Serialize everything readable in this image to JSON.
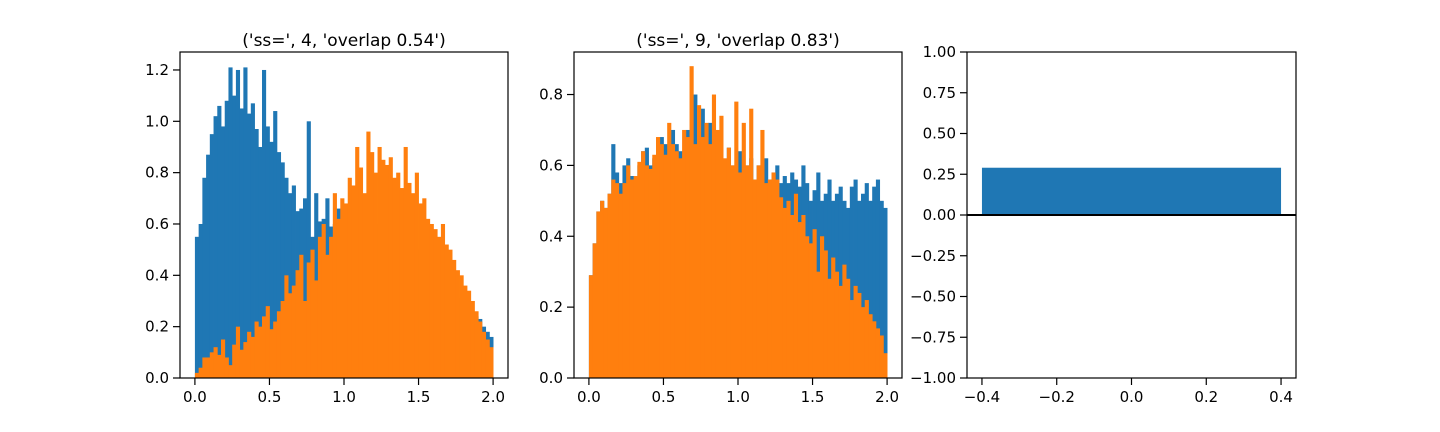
{
  "colors": {
    "blue": "#1f77b4",
    "orange": "#ff7f0e",
    "axis": "#000000"
  },
  "chart_data": [
    {
      "type": "bar",
      "subtype": "histogram",
      "title": "('ss=', 4, 'overlap 0.54')",
      "xlabel": "",
      "ylabel": "",
      "xlim": [
        -0.1,
        2.1
      ],
      "ylim": [
        0,
        1.27
      ],
      "bin_range": [
        0,
        2
      ],
      "xticks": [
        "0.0",
        "0.5",
        "1.0",
        "1.5",
        "2.0"
      ],
      "xtick_values": [
        0,
        0.5,
        1.0,
        1.5,
        2.0
      ],
      "yticks": [
        "0.0",
        "0.2",
        "0.4",
        "0.6",
        "0.8",
        "1.0",
        "1.2"
      ],
      "ytick_values": [
        0,
        0.2,
        0.4,
        0.6,
        0.8,
        1.0,
        1.2
      ],
      "series": [
        {
          "color": "#1f77b4",
          "values": [
            0.55,
            0.6,
            0.78,
            0.87,
            0.95,
            1.02,
            1.06,
            0.98,
            1.08,
            1.21,
            1.1,
            1.2,
            1.05,
            1.21,
            1.03,
            1.07,
            0.97,
            0.9,
            1.2,
            0.98,
            0.92,
            1.04,
            0.88,
            0.84,
            0.78,
            0.72,
            0.75,
            0.65,
            0.66,
            0.7,
            1.0,
            0.55,
            0.72,
            0.61,
            0.62,
            0.7,
            0.59,
            0.6,
            0.66,
            0.56,
            0.5,
            0.55,
            0.62,
            0.68,
            0.53,
            0.63,
            0.58,
            0.64,
            0.6,
            0.53,
            0.58,
            0.57,
            0.55,
            0.56,
            0.61,
            0.5,
            0.52,
            0.48,
            0.46,
            0.44,
            0.5,
            0.43,
            0.4,
            0.41,
            0.38,
            0.4,
            0.37,
            0.35,
            0.33,
            0.34,
            0.3,
            0.31,
            0.28,
            0.27,
            0.25,
            0.24,
            0.23,
            0.2,
            0.18,
            0.16
          ]
        },
        {
          "color": "#ff7f0e",
          "values": [
            0.02,
            0.04,
            0.08,
            0.08,
            0.1,
            0.12,
            0.09,
            0.15,
            0.08,
            0.05,
            0.13,
            0.2,
            0.11,
            0.14,
            0.18,
            0.16,
            0.22,
            0.2,
            0.24,
            0.28,
            0.19,
            0.22,
            0.26,
            0.3,
            0.4,
            0.33,
            0.36,
            0.42,
            0.48,
            0.3,
            0.45,
            0.5,
            0.38,
            0.55,
            0.6,
            0.48,
            0.55,
            0.72,
            0.62,
            0.7,
            0.68,
            0.78,
            0.75,
            0.9,
            0.82,
            0.72,
            0.96,
            0.88,
            0.8,
            0.9,
            0.85,
            0.83,
            0.86,
            0.78,
            0.8,
            0.74,
            0.9,
            0.76,
            0.72,
            0.8,
            0.68,
            0.7,
            0.62,
            0.6,
            0.58,
            0.55,
            0.6,
            0.52,
            0.5,
            0.46,
            0.42,
            0.4,
            0.36,
            0.34,
            0.3,
            0.26,
            0.22,
            0.18,
            0.15,
            0.12
          ]
        }
      ]
    },
    {
      "type": "bar",
      "subtype": "histogram",
      "title": "('ss=', 9, 'overlap 0.83')",
      "xlabel": "",
      "ylabel": "",
      "xlim": [
        -0.1,
        2.1
      ],
      "ylim": [
        0,
        0.92
      ],
      "bin_range": [
        0,
        2
      ],
      "xticks": [
        "0.0",
        "0.5",
        "1.0",
        "1.5",
        "2.0"
      ],
      "xtick_values": [
        0,
        0.5,
        1.0,
        1.5,
        2.0
      ],
      "yticks": [
        "0.0",
        "0.2",
        "0.4",
        "0.6",
        "0.8"
      ],
      "ytick_values": [
        0,
        0.2,
        0.4,
        0.6,
        0.8
      ],
      "series": [
        {
          "color": "#1f77b4",
          "values": [
            0.29,
            0.38,
            0.47,
            0.5,
            0.48,
            0.52,
            0.66,
            0.58,
            0.55,
            0.6,
            0.62,
            0.57,
            0.56,
            0.6,
            0.64,
            0.65,
            0.6,
            0.62,
            0.63,
            0.68,
            0.66,
            0.63,
            0.7,
            0.66,
            0.64,
            0.62,
            0.7,
            0.68,
            0.8,
            0.66,
            0.76,
            0.68,
            0.72,
            0.66,
            0.64,
            0.62,
            0.6,
            0.65,
            0.6,
            0.58,
            0.64,
            0.58,
            0.6,
            0.62,
            0.56,
            0.6,
            0.55,
            0.62,
            0.56,
            0.58,
            0.6,
            0.55,
            0.57,
            0.55,
            0.58,
            0.56,
            0.54,
            0.6,
            0.55,
            0.5,
            0.53,
            0.58,
            0.5,
            0.52,
            0.56,
            0.5,
            0.52,
            0.54,
            0.5,
            0.48,
            0.54,
            0.56,
            0.5,
            0.52,
            0.55,
            0.5,
            0.54,
            0.56,
            0.5,
            0.48
          ]
        },
        {
          "color": "#ff7f0e",
          "values": [
            0.29,
            0.38,
            0.47,
            0.5,
            0.48,
            0.52,
            0.56,
            0.55,
            0.52,
            0.55,
            0.6,
            0.56,
            0.57,
            0.61,
            0.64,
            0.6,
            0.59,
            0.63,
            0.68,
            0.66,
            0.63,
            0.72,
            0.66,
            0.64,
            0.62,
            0.7,
            0.68,
            0.88,
            0.66,
            0.77,
            0.68,
            0.72,
            0.66,
            0.8,
            0.7,
            0.74,
            0.62,
            0.65,
            0.6,
            0.78,
            0.58,
            0.72,
            0.6,
            0.76,
            0.56,
            0.6,
            0.7,
            0.55,
            0.56,
            0.58,
            0.56,
            0.51,
            0.48,
            0.5,
            0.46,
            0.52,
            0.44,
            0.46,
            0.4,
            0.38,
            0.42,
            0.3,
            0.4,
            0.36,
            0.28,
            0.34,
            0.3,
            0.26,
            0.32,
            0.28,
            0.22,
            0.26,
            0.24,
            0.2,
            0.22,
            0.18,
            0.16,
            0.14,
            0.12,
            0.07
          ]
        }
      ]
    },
    {
      "type": "bar",
      "title": "",
      "xlabel": "",
      "ylabel": "",
      "xlim": [
        -0.44,
        0.44
      ],
      "ylim": [
        -1.0,
        1.0
      ],
      "xticks": [
        "−0.4",
        "−0.2",
        "0.0",
        "0.2",
        "0.4"
      ],
      "xtick_values": [
        -0.4,
        -0.2,
        0.0,
        0.2,
        0.4
      ],
      "yticks": [
        "−1.00",
        "−0.75",
        "−0.50",
        "−0.25",
        "0.00",
        "0.25",
        "0.50",
        "0.75",
        "1.00"
      ],
      "ytick_values": [
        -1.0,
        -0.75,
        -0.5,
        -0.25,
        0.0,
        0.25,
        0.5,
        0.75,
        1.0
      ],
      "categories": [
        "0"
      ],
      "x": [
        0
      ],
      "values": [
        0.29
      ],
      "bar_width": 0.8,
      "color": "#1f77b4",
      "hline_y": 0
    }
  ]
}
